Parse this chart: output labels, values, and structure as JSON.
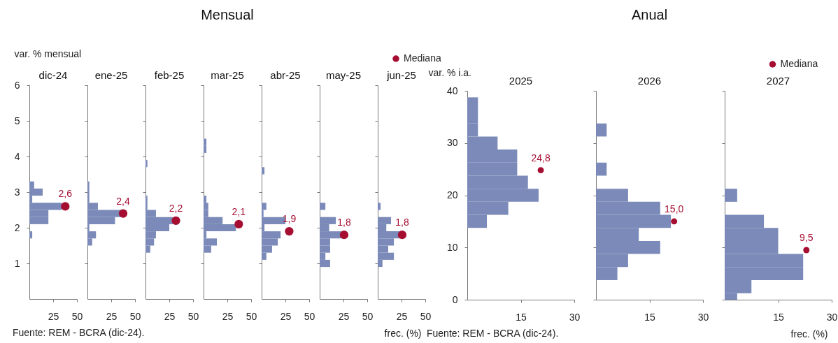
{
  "chart_data": [
    {
      "type": "histogram",
      "orientation": "horizontal",
      "subtitle": "dic-24",
      "ylabel": "var. % mensual",
      "annotations": [
        "Fuente: REM - BCRA (dic-24).",
        {
          "text": "2,6",
          "x": 37.7,
          "y": 2.6
        }
      ],
      "xlim": [
        0,
        50
      ],
      "xticks": [
        25,
        50
      ],
      "ylim": [
        0,
        6
      ],
      "yticks": [
        1,
        2,
        3,
        4,
        5,
        6
      ],
      "bins": [
        1.7,
        1.9,
        2.1,
        2.3,
        2.5,
        2.7,
        2.9,
        3.1,
        3.3
      ],
      "series": [
        {
          "color": "#7b8ab8",
          "values": [
            3,
            0,
            20,
            20,
            34,
            3,
            14,
            5
          ]
        },
        {
          "type": "scatter",
          "color": "#a50d31",
          "x": [
            2.6
          ],
          "values": [
            37.7
          ]
        }
      ]
    },
    {
      "type": "histogram",
      "orientation": "horizontal",
      "subtitle": "ene-25",
      "annotations": [
        {
          "text": "2,4",
          "x": 37.5,
          "y": 2.4
        }
      ],
      "tick_labels": "x",
      "xlim": [
        0,
        50
      ],
      "xticks": [
        25,
        50
      ],
      "ylim": [
        0,
        6
      ],
      "yticks": [
        1,
        2,
        3,
        4,
        5,
        6
      ],
      "bins": [
        1.5,
        1.7,
        1.9,
        2.1,
        2.3,
        2.5,
        2.7,
        2.9,
        3.1,
        3.3
      ],
      "series": [
        {
          "color": "#7b8ab8",
          "values": [
            5,
            9,
            2,
            29,
            36,
            11,
            2,
            2,
            2
          ]
        },
        {
          "type": "scatter",
          "color": "#a50d31",
          "x": [
            2.4
          ],
          "values": [
            37.5
          ]
        }
      ]
    },
    {
      "type": "histogram",
      "orientation": "horizontal",
      "subtitle": "feb-25",
      "annotations": [
        {
          "text": "2,2",
          "x": 32,
          "y": 2.2
        }
      ],
      "tick_labels": "x",
      "xlim": [
        0,
        50
      ],
      "xticks": [
        25,
        50
      ],
      "ylim": [
        0,
        6
      ],
      "yticks": [
        1,
        2,
        3,
        4,
        5,
        6
      ],
      "bins": [
        1.3,
        1.5,
        1.7,
        1.9,
        2.1,
        2.3,
        2.5,
        2.7,
        2.9,
        3.1,
        3.3,
        3.5,
        3.7,
        3.9
      ],
      "series": [
        {
          "color": "#7b8ab8",
          "values": [
            5,
            9,
            11,
            25,
            29,
            11,
            2,
            2,
            0,
            0,
            0,
            0,
            2
          ]
        },
        {
          "type": "scatter",
          "color": "#a50d31",
          "x": [
            2.2
          ],
          "values": [
            32
          ]
        }
      ]
    },
    {
      "type": "histogram",
      "orientation": "horizontal",
      "title": "Mensual",
      "subtitle": "mar-25",
      "annotations": [
        {
          "text": "2,1",
          "x": 37,
          "y": 2.1
        }
      ],
      "tick_labels": "x",
      "xlim": [
        0,
        50
      ],
      "xticks": [
        25,
        50
      ],
      "ylim": [
        0,
        6
      ],
      "yticks": [
        1,
        2,
        3,
        4,
        5,
        6
      ],
      "bins": [
        1.3,
        1.5,
        1.7,
        1.9,
        2.1,
        2.3,
        2.5,
        2.7,
        2.9,
        3.1,
        3.3,
        3.5,
        3.7,
        3.9,
        4.1,
        4.3,
        4.5
      ],
      "series": [
        {
          "color": "#7b8ab8",
          "values": [
            8,
            14,
            3,
            34,
            20,
            5,
            5,
            3,
            0,
            0,
            0,
            0,
            0,
            0,
            3,
            3
          ]
        },
        {
          "type": "scatter",
          "color": "#a50d31",
          "x": [
            2.1
          ],
          "values": [
            37
          ]
        }
      ]
    },
    {
      "type": "histogram",
      "orientation": "horizontal",
      "subtitle": "abr-25",
      "annotations": [
        {
          "text": "1,9",
          "x": 29,
          "y": 1.9
        }
      ],
      "tick_labels": "x",
      "xlim": [
        0,
        50
      ],
      "xticks": [
        25,
        50
      ],
      "ylim": [
        0,
        6
      ],
      "yticks": [
        1,
        2,
        3,
        4,
        5,
        6
      ],
      "bins": [
        1.1,
        1.3,
        1.5,
        1.7,
        1.9,
        2.1,
        2.3,
        2.5,
        2.7,
        2.9,
        3.1,
        3.3,
        3.5,
        3.7
      ],
      "series": [
        {
          "color": "#7b8ab8",
          "values": [
            5,
            11,
            17,
            20,
            3,
            25,
            2,
            5,
            0,
            0,
            0,
            0,
            3
          ]
        },
        {
          "type": "scatter",
          "color": "#a50d31",
          "x": [
            1.9
          ],
          "values": [
            29
          ]
        }
      ]
    },
    {
      "type": "histogram",
      "orientation": "horizontal",
      "subtitle": "may-25",
      "annotations": [
        {
          "text": "1,8",
          "x": 25.7,
          "y": 1.8
        }
      ],
      "tick_labels": "x",
      "xlim": [
        0,
        50
      ],
      "xticks": [
        25,
        50
      ],
      "ylim": [
        0,
        6
      ],
      "yticks": [
        1,
        2,
        3,
        4,
        5,
        6
      ],
      "bins": [
        0.9,
        1.1,
        1.3,
        1.5,
        1.7,
        1.9,
        2.1,
        2.3,
        2.5,
        2.7
      ],
      "series": [
        {
          "color": "#7b8ab8",
          "values": [
            11,
            6,
            11,
            11,
            23,
            10,
            17,
            0,
            6
          ]
        },
        {
          "type": "scatter",
          "color": "#a50d31",
          "x": [
            1.8
          ],
          "values": [
            25.7
          ]
        }
      ]
    },
    {
      "type": "histogram",
      "orientation": "horizontal",
      "subtitle": "jun-25",
      "xlabel": "frec. (%)",
      "annotations": [
        {
          "text": "1,8",
          "x": 25.7,
          "y": 1.8
        }
      ],
      "legend": "top right",
      "tick_labels": "x",
      "xlim": [
        0,
        50
      ],
      "xticks": [
        25,
        50
      ],
      "ylim": [
        0,
        6
      ],
      "yticks": [
        1,
        2,
        3,
        4,
        5,
        6
      ],
      "bins": [
        0.9,
        1.1,
        1.3,
        1.5,
        1.7,
        1.9,
        2.1,
        2.3,
        2.5,
        2.7
      ],
      "series": [
        {
          "color": "#7b8ab8",
          "values": [
            5,
            17,
            11,
            17,
            24,
            9,
            14,
            0,
            3
          ]
        },
        {
          "type": "scatter",
          "name": "Mediana",
          "color": "#a50d31",
          "x": [
            1.8
          ],
          "values": [
            25.7
          ]
        }
      ]
    },
    {
      "type": "histogram",
      "orientation": "horizontal",
      "subtitle": "2025",
      "ylabel": "var. % i.a.",
      "annotations": [
        "Fuente: REM - BCRA (dic-24).",
        {
          "text": "24,8",
          "x": 20.6,
          "y": 24.8
        }
      ],
      "xlim": [
        0,
        30
      ],
      "xticks": [
        15,
        30
      ],
      "ylim": [
        0,
        40
      ],
      "yticks": [
        0,
        10,
        20,
        30,
        40
      ],
      "bins": [
        13.75,
        16.25,
        18.75,
        21.25,
        23.75,
        26.25,
        28.75,
        31.25,
        33.75,
        36.25,
        38.75
      ],
      "series": [
        {
          "color": "#7b8ab8",
          "values": [
            5.5,
            11.5,
            20,
            17,
            14,
            14,
            8.5,
            3,
            3,
            3
          ]
        },
        {
          "type": "scatter",
          "color": "#a50d31",
          "x": [
            24.8
          ],
          "values": [
            20.6
          ]
        }
      ]
    },
    {
      "type": "histogram",
      "orientation": "horizontal",
      "title": "Anual",
      "subtitle": "2026",
      "annotations": [
        {
          "text": "15,0",
          "x": 21.9,
          "y": 15.0
        }
      ],
      "tick_labels": "x",
      "xlim": [
        0,
        30
      ],
      "xticks": [
        15,
        30
      ],
      "ylim": [
        0,
        40
      ],
      "yticks": [
        0,
        10,
        20,
        30,
        40
      ],
      "bins": [
        3.75,
        6.25,
        8.75,
        11.25,
        13.75,
        16.25,
        18.75,
        21.25,
        23.75,
        26.25,
        28.75,
        31.25,
        33.75
      ],
      "series": [
        {
          "color": "#7b8ab8",
          "values": [
            6,
            9,
            18,
            12,
            21,
            18,
            9,
            0,
            3,
            0,
            0,
            3
          ]
        },
        {
          "type": "scatter",
          "color": "#a50d31",
          "x": [
            15.0
          ],
          "values": [
            21.9
          ]
        }
      ]
    },
    {
      "type": "histogram",
      "orientation": "horizontal",
      "subtitle": "2027",
      "xlabel": "frec. (%)",
      "annotations": [
        {
          "text": "9,5",
          "x": 22.9,
          "y": 9.5
        }
      ],
      "legend": "top right",
      "tick_labels": "x",
      "xlim": [
        0,
        30
      ],
      "xticks": [
        15,
        30
      ],
      "ylim": [
        0,
        40
      ],
      "yticks": [
        0,
        10,
        20,
        30,
        40
      ],
      "bins": [
        0,
        1.25,
        3.75,
        6.25,
        8.75,
        11.25,
        13.75,
        16.25,
        18.75,
        21.25
      ],
      "series": [
        {
          "color": "#7b8ab8",
          "values": [
            3.5,
            7.5,
            22,
            22,
            15,
            15,
            11,
            0,
            3.5
          ]
        },
        {
          "type": "scatter",
          "name": "Mediana",
          "color": "#a50d31",
          "x": [
            9.5
          ],
          "values": [
            22.9
          ]
        }
      ]
    }
  ]
}
